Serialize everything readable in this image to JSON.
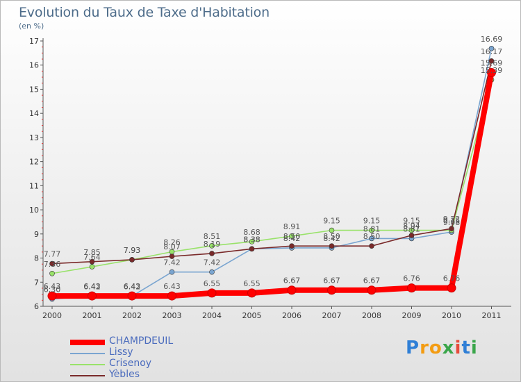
{
  "title": "Evolution du Taux de Taxe d'Habitation",
  "subtitle": "(en %)",
  "logo": {
    "letters": [
      {
        "ch": "P",
        "color": "#2f7fd6"
      },
      {
        "ch": "r",
        "color": "#f39c12"
      },
      {
        "ch": "o",
        "color": "#f39c12"
      },
      {
        "ch": "x",
        "color": "#3aa64a"
      },
      {
        "ch": "i",
        "color": "#e74c3c"
      },
      {
        "ch": "t",
        "color": "#2f7fd6"
      },
      {
        "ch": "i",
        "color": "#3aa64a"
      }
    ]
  },
  "chart_data": {
    "type": "line",
    "x": [
      "2000",
      "2001",
      "2002",
      "2003",
      "2004",
      "2005",
      "2006",
      "2007",
      "2008",
      "2009",
      "2010",
      "2011"
    ],
    "ylim": [
      6,
      17
    ],
    "yticks": [
      6,
      7,
      8,
      9,
      10,
      11,
      12,
      13,
      14,
      15,
      16,
      17
    ],
    "grid": false,
    "legend": "bottom-left",
    "series": [
      {
        "name": "CHAMPDEUIL",
        "color": "#ff0000",
        "thick": true,
        "values": [
          6.43,
          6.43,
          6.43,
          6.43,
          6.55,
          6.55,
          6.67,
          6.67,
          6.67,
          6.76,
          6.76,
          15.69
        ],
        "labels": [
          "6.43",
          "6.43",
          "6.43",
          "6.43",
          "6.55",
          "6.55",
          "6.67",
          "6.67",
          "6.67",
          "6.76",
          "6.76",
          "15.69"
        ]
      },
      {
        "name": "Lissy",
        "color": "#7aa5d0",
        "thick": false,
        "values": [
          6.3,
          6.42,
          6.42,
          7.42,
          7.42,
          8.38,
          8.42,
          8.42,
          8.81,
          8.81,
          9.08,
          16.69
        ],
        "labels": [
          "6.30",
          "6.42",
          "6.42",
          "7.42",
          "7.42",
          "8.38",
          "8.42",
          "8.42",
          "8.81",
          "8.81",
          "9.08",
          "16.69"
        ]
      },
      {
        "name": "Crisenoy",
        "color": "#99e26a",
        "thick": false,
        "values": [
          7.36,
          7.64,
          7.93,
          8.26,
          8.51,
          8.68,
          8.91,
          9.15,
          9.15,
          9.15,
          9.15,
          15.39
        ],
        "labels": [
          "7.36",
          "7.64",
          "7.93",
          "8.26",
          "8.51",
          "8.68",
          "8.91",
          "9.15",
          "9.15",
          "9.15",
          "9.15",
          "15.39"
        ]
      },
      {
        "name": "Yèbles",
        "color": "#7a2a2a",
        "thick": false,
        "values": [
          7.77,
          7.85,
          7.93,
          8.07,
          8.19,
          8.38,
          8.5,
          8.5,
          8.5,
          8.94,
          9.22,
          16.17
        ],
        "labels": [
          "7.77",
          "7.85",
          "7.93",
          "8.07",
          "8.19",
          "8.38",
          "8.50",
          "8.50",
          "8.50",
          "8.94",
          "9.22",
          "16.17"
        ]
      }
    ]
  }
}
